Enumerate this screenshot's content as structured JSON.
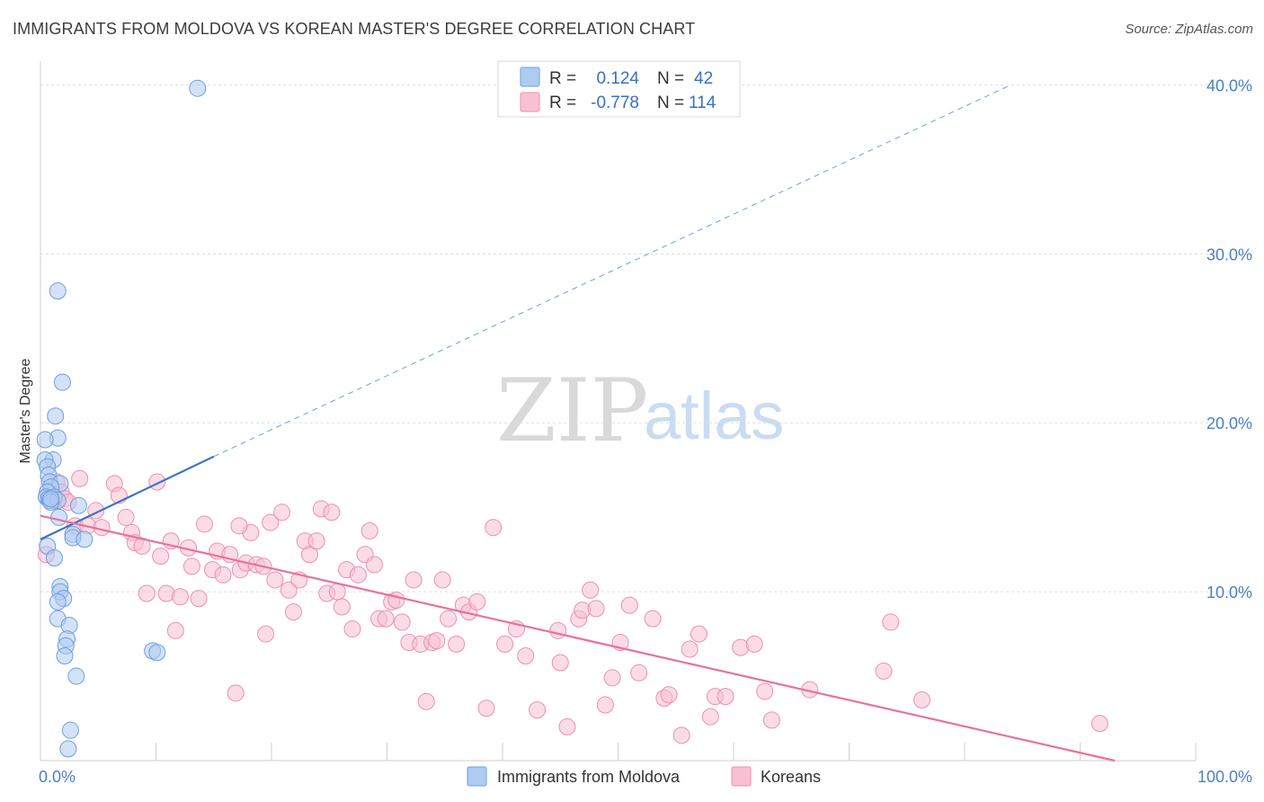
{
  "title": "IMMIGRANTS FROM MOLDOVA VS KOREAN MASTER'S DEGREE CORRELATION CHART",
  "source": "Source: ZipAtlas.com",
  "watermark": {
    "zip": "ZIP",
    "atlas": "atlas"
  },
  "legend": {
    "r_label": "R =",
    "n_label": "N =",
    "entries": [
      {
        "r": "0.124",
        "n": "42",
        "fill": "#aecbf0",
        "stroke": "#6e9fdd"
      },
      {
        "r": "-0.778",
        "n": "114",
        "fill": "#f8c0d2",
        "stroke": "#ec8fb0"
      }
    ]
  },
  "bottom_legend": [
    "Immigrants from Moldova",
    "Koreans"
  ],
  "colors": {
    "blue_fill": "#aecbf0",
    "blue_stroke": "#6e9fdd",
    "blue_line": "#3a72cc",
    "pink_fill": "#f8c0d2",
    "pink_stroke": "#ec8fb0",
    "pink_line": "#e8729a",
    "grid": "#dddddd",
    "axis_text": "#4a7fc9"
  },
  "chart_data": {
    "type": "scatter",
    "title": "IMMIGRANTS FROM MOLDOVA VS KOREAN MASTER'S DEGREE CORRELATION CHART",
    "xlabel": "",
    "ylabel": "Master's Degree",
    "xlim": [
      0,
      100
    ],
    "ylim": [
      0,
      40.8
    ],
    "x_tick_labels": [
      "0.0%",
      "100.0%"
    ],
    "y_ticks": [
      10,
      20,
      30,
      40
    ],
    "y_tick_labels": [
      "10.0%",
      "20.0%",
      "30.0%",
      "40.0%"
    ],
    "series": [
      {
        "name": "Immigrants from Moldova",
        "r": 0.124,
        "n": 42,
        "trend": {
          "x0": 0,
          "y0": 13.1,
          "x1": 15,
          "y1": 18.0,
          "dash_to_x": 84,
          "dash_to_y": 40.0
        },
        "points": [
          [
            13.6,
            39.8
          ],
          [
            1.5,
            27.8
          ],
          [
            1.9,
            22.4
          ],
          [
            1.3,
            20.4
          ],
          [
            1.5,
            19.1
          ],
          [
            0.4,
            19.0
          ],
          [
            1.1,
            17.8
          ],
          [
            0.4,
            17.8
          ],
          [
            0.6,
            17.4
          ],
          [
            0.7,
            16.9
          ],
          [
            0.8,
            16.5
          ],
          [
            1.7,
            16.4
          ],
          [
            0.9,
            16.2
          ],
          [
            0.6,
            15.9
          ],
          [
            0.5,
            15.6
          ],
          [
            0.7,
            15.5
          ],
          [
            1.2,
            15.6
          ],
          [
            0.8,
            15.4
          ],
          [
            3.3,
            15.1
          ],
          [
            1.5,
            15.4
          ],
          [
            0.9,
            15.3
          ],
          [
            1.6,
            14.4
          ],
          [
            2.8,
            13.4
          ],
          [
            2.8,
            13.2
          ],
          [
            3.8,
            13.1
          ],
          [
            0.6,
            12.7
          ],
          [
            1.2,
            12.0
          ],
          [
            1.7,
            10.3
          ],
          [
            1.7,
            10.0
          ],
          [
            2.0,
            9.6
          ],
          [
            1.5,
            9.4
          ],
          [
            1.5,
            8.4
          ],
          [
            2.5,
            8.0
          ],
          [
            2.3,
            7.2
          ],
          [
            2.2,
            6.8
          ],
          [
            2.1,
            6.2
          ],
          [
            9.7,
            6.5
          ],
          [
            10.1,
            6.4
          ],
          [
            3.1,
            5.0
          ],
          [
            2.6,
            1.8
          ],
          [
            2.4,
            0.7
          ],
          [
            0.9,
            15.5
          ]
        ]
      },
      {
        "name": "Koreans",
        "r": -0.778,
        "n": 114,
        "trend": {
          "x0": 0,
          "y0": 14.5,
          "x1": 93,
          "y1": 0.0
        },
        "points": [
          [
            0.5,
            12.2
          ],
          [
            0.8,
            15.9
          ],
          [
            1.2,
            15.4
          ],
          [
            1.4,
            16.5
          ],
          [
            1.8,
            15.9
          ],
          [
            2.1,
            15.5
          ],
          [
            2.4,
            15.3
          ],
          [
            3.4,
            16.7
          ],
          [
            3.0,
            13.9
          ],
          [
            4.1,
            13.9
          ],
          [
            4.8,
            14.8
          ],
          [
            5.3,
            13.8
          ],
          [
            6.4,
            16.4
          ],
          [
            6.8,
            15.7
          ],
          [
            7.4,
            14.4
          ],
          [
            7.9,
            13.5
          ],
          [
            8.2,
            12.9
          ],
          [
            8.8,
            12.7
          ],
          [
            9.2,
            9.9
          ],
          [
            10.1,
            16.5
          ],
          [
            10.4,
            12.1
          ],
          [
            10.9,
            9.9
          ],
          [
            11.3,
            13.0
          ],
          [
            11.7,
            7.7
          ],
          [
            12.1,
            9.7
          ],
          [
            12.8,
            12.6
          ],
          [
            13.1,
            11.5
          ],
          [
            13.7,
            9.6
          ],
          [
            14.2,
            14.0
          ],
          [
            14.9,
            11.3
          ],
          [
            15.3,
            12.4
          ],
          [
            15.8,
            11.0
          ],
          [
            16.4,
            12.2
          ],
          [
            16.9,
            4.0
          ],
          [
            17.3,
            11.3
          ],
          [
            17.8,
            11.7
          ],
          [
            18.2,
            13.5
          ],
          [
            18.7,
            11.6
          ],
          [
            19.3,
            11.5
          ],
          [
            19.5,
            7.5
          ],
          [
            19.9,
            14.1
          ],
          [
            20.3,
            10.7
          ],
          [
            20.9,
            14.7
          ],
          [
            21.5,
            10.1
          ],
          [
            21.9,
            8.8
          ],
          [
            22.4,
            10.7
          ],
          [
            22.9,
            13.0
          ],
          [
            23.3,
            12.2
          ],
          [
            23.9,
            13.0
          ],
          [
            24.3,
            14.9
          ],
          [
            24.8,
            9.9
          ],
          [
            25.2,
            14.7
          ],
          [
            25.7,
            10.0
          ],
          [
            26.1,
            9.1
          ],
          [
            26.5,
            11.3
          ],
          [
            27.0,
            7.8
          ],
          [
            27.5,
            11.0
          ],
          [
            28.1,
            12.2
          ],
          [
            28.5,
            13.6
          ],
          [
            28.9,
            11.6
          ],
          [
            29.3,
            8.4
          ],
          [
            29.9,
            8.4
          ],
          [
            30.4,
            9.4
          ],
          [
            30.8,
            9.5
          ],
          [
            31.3,
            8.2
          ],
          [
            31.9,
            7.0
          ],
          [
            32.3,
            10.7
          ],
          [
            32.9,
            6.9
          ],
          [
            33.4,
            3.5
          ],
          [
            33.9,
            7.0
          ],
          [
            34.3,
            7.1
          ],
          [
            34.8,
            10.7
          ],
          [
            35.3,
            8.4
          ],
          [
            36.0,
            6.9
          ],
          [
            36.6,
            9.2
          ],
          [
            37.1,
            8.8
          ],
          [
            37.8,
            9.4
          ],
          [
            38.6,
            3.1
          ],
          [
            39.2,
            13.8
          ],
          [
            40.2,
            6.9
          ],
          [
            41.2,
            7.8
          ],
          [
            42.0,
            6.2
          ],
          [
            43.0,
            3.0
          ],
          [
            44.8,
            7.7
          ],
          [
            45.0,
            5.8
          ],
          [
            45.6,
            2.0
          ],
          [
            46.6,
            8.4
          ],
          [
            46.9,
            8.9
          ],
          [
            47.6,
            10.1
          ],
          [
            48.1,
            9.0
          ],
          [
            48.9,
            3.3
          ],
          [
            49.5,
            4.9
          ],
          [
            50.2,
            7.0
          ],
          [
            51.0,
            9.2
          ],
          [
            51.8,
            5.2
          ],
          [
            53.0,
            8.4
          ],
          [
            54.0,
            3.7
          ],
          [
            54.4,
            3.9
          ],
          [
            55.5,
            1.5
          ],
          [
            56.2,
            6.6
          ],
          [
            57.0,
            7.5
          ],
          [
            58.0,
            2.6
          ],
          [
            58.4,
            3.8
          ],
          [
            59.3,
            3.8
          ],
          [
            60.6,
            6.7
          ],
          [
            61.8,
            6.9
          ],
          [
            62.7,
            4.1
          ],
          [
            63.3,
            2.4
          ],
          [
            66.6,
            4.2
          ],
          [
            73.0,
            5.3
          ],
          [
            73.6,
            8.2
          ],
          [
            76.3,
            3.6
          ],
          [
            91.7,
            2.2
          ],
          [
            17.2,
            13.9
          ]
        ]
      }
    ]
  }
}
